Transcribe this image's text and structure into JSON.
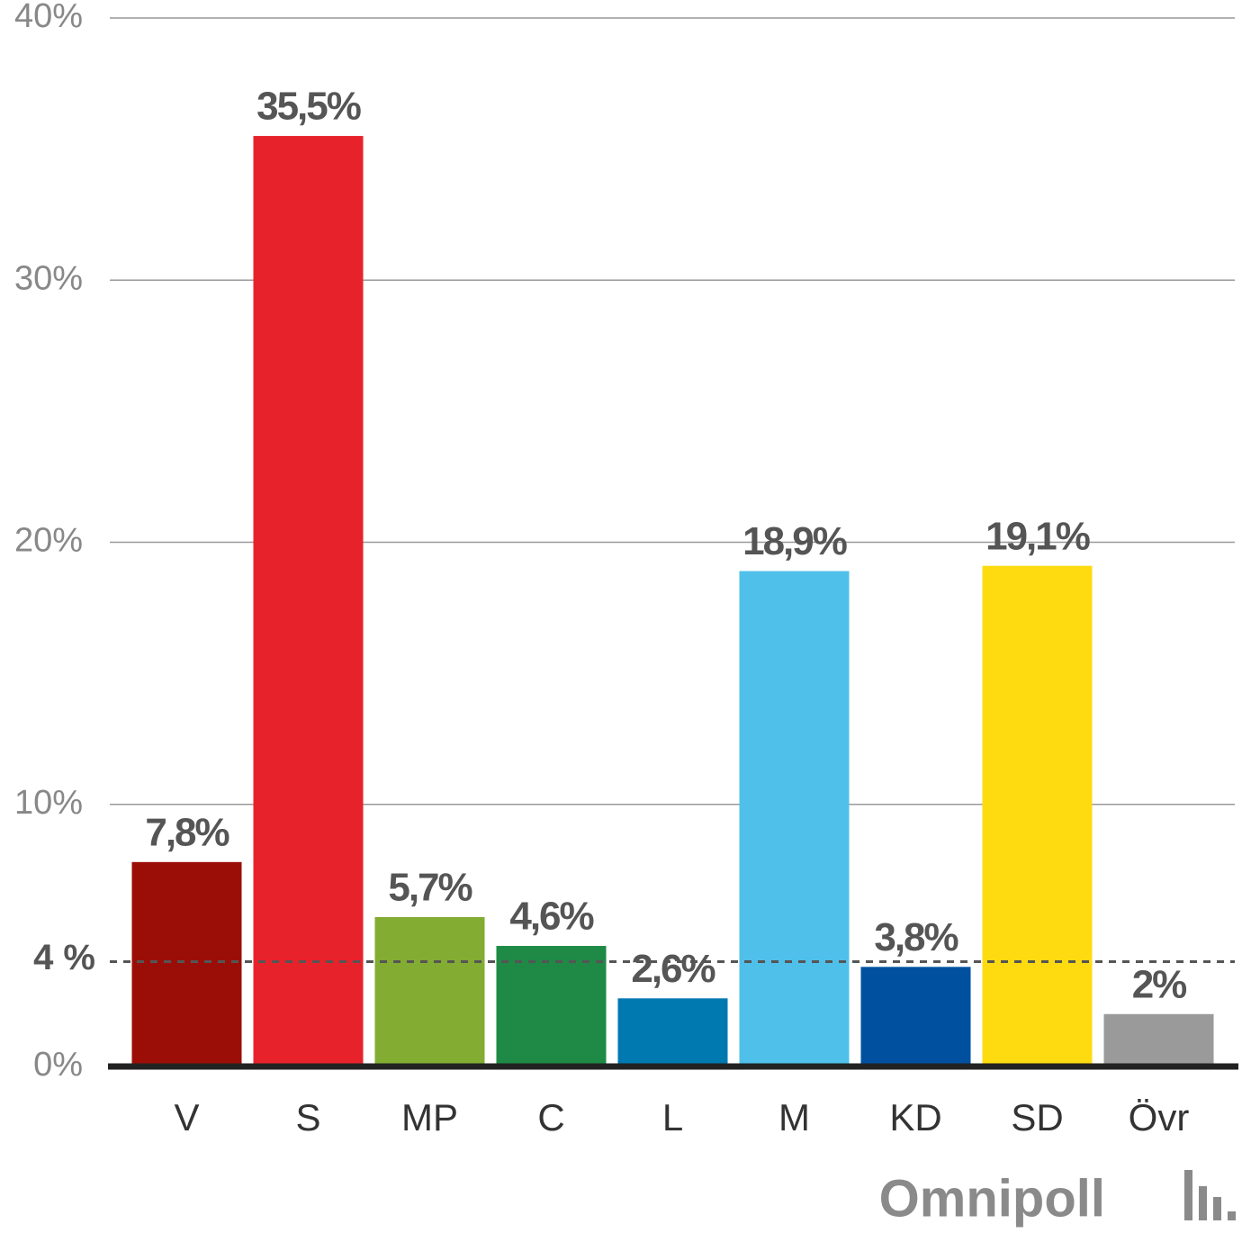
{
  "chart_data": {
    "type": "bar",
    "categories": [
      "V",
      "S",
      "MP",
      "C",
      "L",
      "M",
      "KD",
      "SD",
      "Övr"
    ],
    "values": [
      7.8,
      35.5,
      5.7,
      4.6,
      2.6,
      18.9,
      3.8,
      19.1,
      2
    ],
    "value_labels": [
      "7,8%",
      "35,5%",
      "5,7%",
      "4,6%",
      "2,6%",
      "18,9%",
      "3,8%",
      "19,1%",
      "2%"
    ],
    "colors": [
      "#9b0e07",
      "#e8222a",
      "#83ac32",
      "#1e8a45",
      "#0078b0",
      "#4fc0ea",
      "#0050a0",
      "#fedb10",
      "#9a9a9a"
    ],
    "ylim": [
      0,
      40
    ],
    "yticks": [
      {
        "value": 0,
        "label": "0%"
      },
      {
        "value": 10,
        "label": "10%"
      },
      {
        "value": 20,
        "label": "20%"
      },
      {
        "value": 30,
        "label": "30%"
      },
      {
        "value": 40,
        "label": "40%"
      }
    ],
    "grid": true,
    "threshold": {
      "value": 4,
      "label": "4 %"
    },
    "source_logo": "Omnipoll"
  }
}
